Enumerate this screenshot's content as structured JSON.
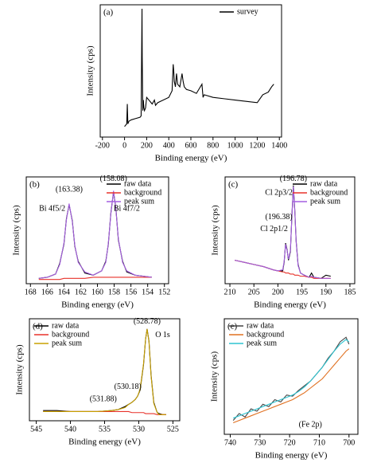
{
  "chart_data": [
    {
      "type": "line",
      "label": "(a)",
      "xlabel": "Binding energy (eV)",
      "ylabel": "Intensity (cps)",
      "legend": "upper right",
      "xlim": [
        -220,
        1420
      ],
      "xticks": [
        -200,
        0,
        200,
        400,
        600,
        800,
        1000,
        1200,
        1400
      ],
      "ylim": [
        0,
        100
      ],
      "series": [
        {
          "name": "survey",
          "color": "#000000",
          "x": [
            0,
            10,
            20,
            25,
            30,
            40,
            60,
            100,
            140,
            150,
            158,
            160,
            165,
            170,
            175,
            180,
            190,
            200,
            250,
            270,
            280,
            300,
            400,
            430,
            440,
            445,
            450,
            460,
            470,
            480,
            500,
            520,
            530,
            540,
            560,
            600,
            650,
            700,
            710,
            720,
            800,
            900,
            1000,
            1100,
            1200,
            1250,
            1300,
            1330,
            1350
          ],
          "values": [
            8,
            9,
            10,
            25,
            10,
            12,
            13,
            14,
            15,
            16,
            97,
            60,
            20,
            28,
            22,
            20,
            22,
            30,
            25,
            28,
            24,
            26,
            30,
            35,
            55,
            50,
            42,
            38,
            48,
            40,
            38,
            48,
            42,
            38,
            36,
            35,
            33,
            40,
            30,
            32,
            30,
            29,
            28,
            27,
            26,
            32,
            34,
            38,
            40
          ]
        }
      ],
      "annotations": []
    },
    {
      "type": "line",
      "label": "(b)",
      "xlabel": "Binding energy (eV)",
      "ylabel": "Intensity (cps)",
      "legend": "upper right",
      "xlim": [
        168.5,
        151.5
      ],
      "xticks": [
        168,
        166,
        164,
        162,
        160,
        158,
        156,
        154,
        152
      ],
      "ylim": [
        0,
        100
      ],
      "series": [
        {
          "name": "raw data",
          "color": "#000000",
          "x": [
            167,
            166,
            165,
            164.5,
            164,
            163.7,
            163.38,
            163,
            162.7,
            162.3,
            161.5,
            160.5,
            159.5,
            159,
            158.7,
            158.4,
            158.08,
            157.8,
            157.5,
            157,
            156.5,
            155.5,
            154.5,
            153.5
          ],
          "values": [
            5,
            6,
            9,
            19,
            37,
            61,
            74,
            59,
            35,
            21,
            10,
            8,
            12,
            21,
            37,
            66,
            86,
            71,
            41,
            21,
            11,
            8,
            7,
            6
          ]
        },
        {
          "name": "background",
          "color": "#e8322a",
          "x": [
            167,
            166,
            165,
            164.5,
            164,
            163.7,
            163.38,
            163,
            162.7,
            162.3,
            161.5,
            160.5,
            159.5,
            159,
            158.7,
            158.4,
            158.08,
            157.8,
            157.5,
            157,
            156.5,
            155.5,
            154.5,
            153.5
          ],
          "values": [
            4,
            4,
            4,
            4,
            5,
            5,
            5,
            5,
            5,
            5,
            5,
            6,
            6,
            6,
            6,
            6,
            6,
            6,
            6,
            6,
            6,
            6,
            6,
            6
          ]
        },
        {
          "name": "peak sum",
          "color": "#a45ee0",
          "x": [
            167,
            166,
            165,
            164.5,
            164,
            163.7,
            163.38,
            163,
            162.7,
            162.3,
            161.5,
            160.5,
            159.5,
            159,
            158.7,
            158.4,
            158.08,
            157.8,
            157.5,
            157,
            156.5,
            155.5,
            154.5,
            153.5
          ],
          "values": [
            5,
            6,
            9,
            18,
            38,
            60,
            75,
            58,
            36,
            20,
            11,
            8,
            12,
            20,
            38,
            65,
            87,
            70,
            42,
            20,
            12,
            8,
            7,
            6
          ]
        }
      ],
      "annotations": [
        {
          "text": "(163.38)",
          "x": 163.38,
          "y": 88
        },
        {
          "text": "Bi 4f5/2",
          "x": 165.4,
          "y": 70
        },
        {
          "text": "(158.08)",
          "x": 158.08,
          "y": 98
        },
        {
          "text": "Bi 4f7/2",
          "x": 156.5,
          "y": 70
        }
      ]
    },
    {
      "type": "line",
      "label": "(c)",
      "xlabel": "Binding energy (eV)",
      "ylabel": "Intensity (cps)",
      "legend": "upper right",
      "xlim": [
        211,
        184
      ],
      "xticks": [
        210,
        205,
        200,
        195,
        190,
        185
      ],
      "ylim": [
        0,
        100
      ],
      "series": [
        {
          "name": "raw data",
          "color": "#000000",
          "x": [
            209,
            207,
            205,
            203,
            201,
            200,
            199,
            198.7,
            198.4,
            198.1,
            197.8,
            197.4,
            197.1,
            196.78,
            196.5,
            196.2,
            195.8,
            195.3,
            194.5,
            193.5,
            193,
            192.5,
            191,
            190,
            189
          ],
          "values": [
            22,
            20,
            18,
            16,
            13,
            12,
            12,
            20,
            38,
            32,
            22,
            30,
            62,
            92,
            70,
            40,
            18,
            10,
            8,
            6,
            10,
            6,
            5,
            8,
            7
          ]
        },
        {
          "name": "background",
          "color": "#e8322a",
          "x": [
            209,
            207,
            205,
            203,
            201,
            200,
            199,
            198.7,
            198.4,
            198.1,
            197.8,
            197.4,
            197.1,
            196.78,
            196.5,
            196.2,
            195.8,
            195.3,
            194.5,
            193.5,
            193,
            192.5,
            191,
            190,
            189
          ],
          "values": [
            22,
            20,
            18,
            16,
            13,
            12,
            11,
            11,
            10,
            10,
            10,
            9,
            9,
            9,
            8,
            8,
            8,
            7,
            7,
            6,
            6,
            5,
            5,
            5,
            5
          ]
        },
        {
          "name": "peak sum",
          "color": "#a45ee0",
          "x": [
            209,
            207,
            205,
            203,
            201,
            200,
            199,
            198.7,
            198.4,
            198.1,
            197.8,
            197.4,
            197.1,
            196.78,
            196.5,
            196.2,
            195.8,
            195.3,
            194.5,
            193.5,
            193,
            192.5,
            191,
            190,
            189
          ],
          "values": [
            22,
            20,
            18,
            16,
            13,
            12,
            13,
            21,
            37,
            31,
            23,
            31,
            61,
            91,
            69,
            39,
            17,
            10,
            8,
            6,
            7,
            6,
            5,
            5,
            5
          ]
        }
      ],
      "annotations": [
        {
          "text": "(196.78)",
          "x": 196.78,
          "y": 98
        },
        {
          "text": "Cl 2p3/2",
          "x": 199.8,
          "y": 85
        },
        {
          "text": "(196.38)",
          "x": 199.8,
          "y": 62
        },
        {
          "text": "Cl 2p1/2",
          "x": 200.8,
          "y": 51
        }
      ]
    },
    {
      "type": "line",
      "label": "(d)",
      "xlabel": "Binding energy (eV)",
      "ylabel": "Intensity (cps)",
      "legend": "upper left",
      "xlim": [
        546,
        524
      ],
      "xticks": [
        545,
        540,
        535,
        530,
        525
      ],
      "ylim": [
        0,
        100
      ],
      "series": [
        {
          "name": "raw data",
          "color": "#000000",
          "x": [
            544,
            542,
            540,
            538,
            536,
            534,
            533,
            532,
            531.5,
            531,
            530.5,
            530.18,
            529.8,
            529.3,
            529,
            528.78,
            528.5,
            528.2,
            527.8,
            527.3,
            527,
            526.5,
            526
          ],
          "values": [
            10,
            10,
            9,
            9,
            9,
            10,
            11,
            14,
            16,
            18,
            21,
            24,
            30,
            55,
            80,
            90,
            78,
            45,
            18,
            8,
            7,
            6,
            6
          ]
        },
        {
          "name": "background",
          "color": "#e8322a",
          "x": [
            544,
            542,
            540,
            538,
            536,
            534,
            533,
            532,
            531.5,
            531,
            530.5,
            530.18,
            529.8,
            529.3,
            529,
            528.78,
            528.5,
            528.2,
            527.8,
            527.3,
            527,
            526.5,
            526
          ],
          "values": [
            9,
            9,
            9,
            9,
            9,
            9,
            9,
            9,
            9,
            8,
            8,
            8,
            8,
            8,
            7,
            7,
            7,
            7,
            7,
            6,
            6,
            6,
            6
          ]
        },
        {
          "name": "peak sum",
          "color": "#c9a100",
          "x": [
            544,
            542,
            540,
            538,
            536,
            534,
            533,
            532,
            531.5,
            531,
            530.5,
            530.18,
            529.8,
            529.3,
            529,
            528.78,
            528.5,
            528.2,
            527.8,
            527.3,
            527,
            526.5,
            526
          ],
          "values": [
            9,
            9,
            9,
            9,
            9,
            10,
            11,
            13,
            16,
            18,
            21,
            24,
            31,
            56,
            80,
            90,
            77,
            44,
            17,
            8,
            6,
            6,
            6
          ]
        }
      ],
      "annotations": [
        {
          "text": "(528.78)",
          "x": 528.78,
          "y": 97
        },
        {
          "text": "O 1s",
          "x": 526.5,
          "y": 84
        },
        {
          "text": "(530.18)",
          "x": 531.6,
          "y": 33
        },
        {
          "text": "(531.88)",
          "x": 535.2,
          "y": 21
        }
      ]
    },
    {
      "type": "line",
      "label": "(e)",
      "xlabel": "Binding energy (eV)",
      "ylabel": "Intensity (cps)",
      "legend": "upper left",
      "xlim": [
        742,
        697
      ],
      "xticks": [
        740,
        730,
        720,
        710,
        700
      ],
      "ylim": [
        0,
        100
      ],
      "series": [
        {
          "name": "raw data",
          "color": "#444444",
          "x": [
            739,
            737,
            735,
            733,
            731,
            729,
            727,
            725,
            723,
            721,
            719,
            717,
            715,
            713,
            711,
            709,
            707,
            705,
            703,
            701,
            700
          ],
          "values": [
            12,
            18,
            15,
            22,
            20,
            26,
            24,
            30,
            28,
            34,
            33,
            38,
            42,
            46,
            52,
            58,
            66,
            72,
            80,
            84,
            78
          ]
        },
        {
          "name": "background",
          "color": "#e07020",
          "x": [
            739,
            737,
            735,
            733,
            731,
            729,
            727,
            725,
            723,
            721,
            719,
            717,
            715,
            713,
            711,
            709,
            707,
            705,
            703,
            701,
            700
          ],
          "values": [
            10,
            12,
            14,
            16,
            18,
            20,
            22,
            24,
            26,
            28,
            30,
            33,
            36,
            40,
            44,
            48,
            54,
            60,
            66,
            72,
            74
          ]
        },
        {
          "name": "peak sum",
          "color": "#2ec4d0",
          "x": [
            739,
            737,
            735,
            733,
            731,
            729,
            727,
            725,
            723,
            721,
            719,
            717,
            715,
            713,
            711,
            709,
            707,
            705,
            703,
            701,
            700
          ],
          "values": [
            14,
            16,
            18,
            20,
            22,
            24,
            26,
            28,
            30,
            32,
            34,
            37,
            41,
            46,
            52,
            58,
            65,
            72,
            78,
            82,
            80
          ]
        }
      ],
      "annotations": [
        {
          "text": "(Fe 2p)",
          "x": 713,
          "y": 8
        }
      ]
    }
  ]
}
